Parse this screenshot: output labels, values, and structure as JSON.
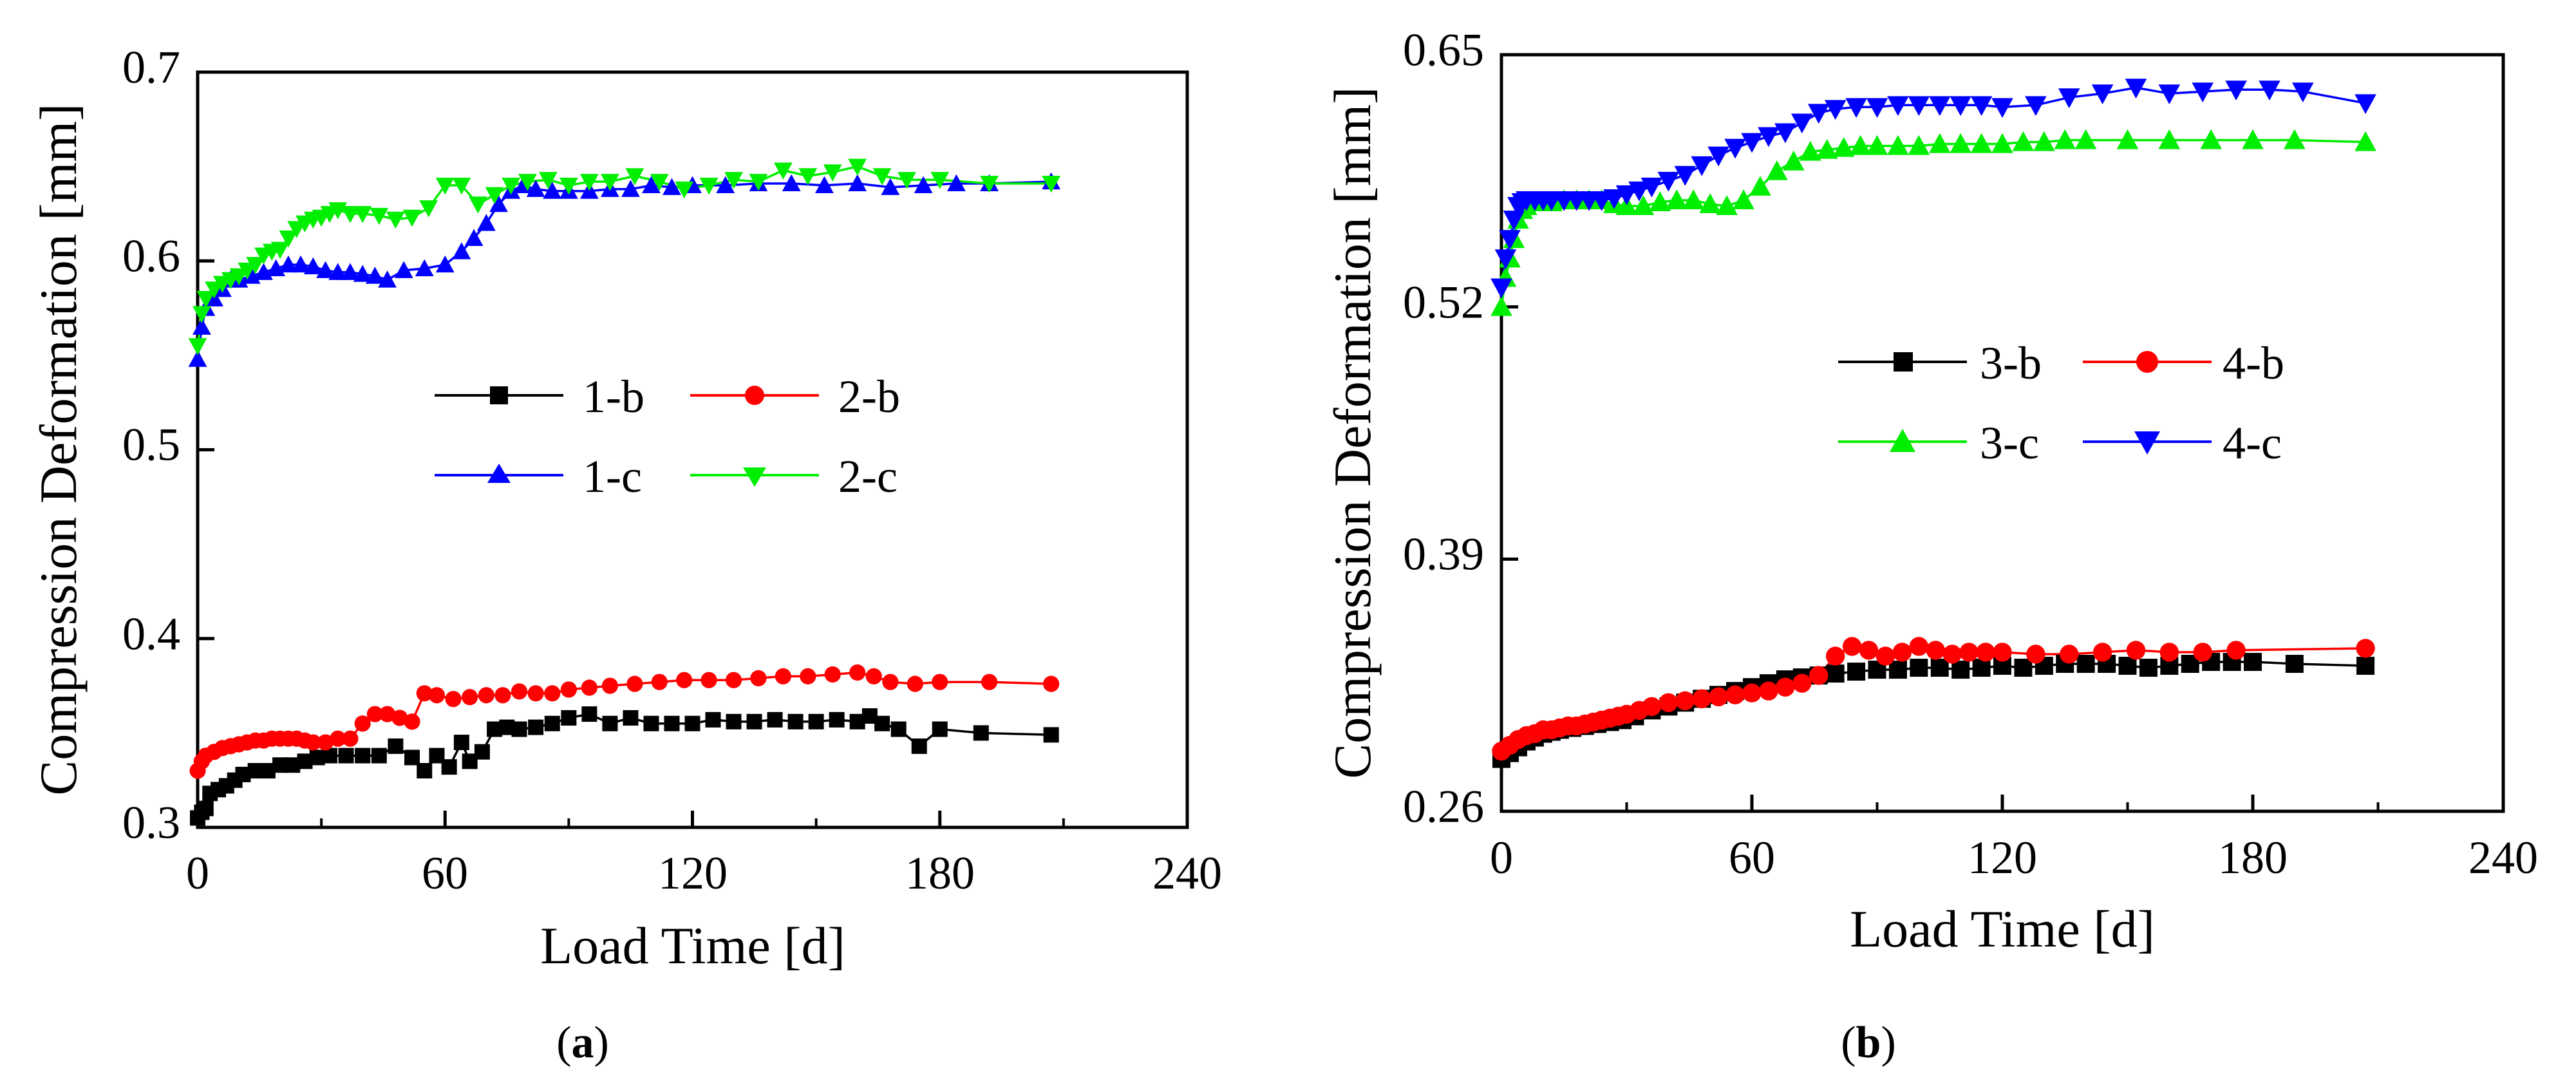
{
  "chart_data": [
    {
      "type": "line",
      "panel_label": "a",
      "xlabel": "Load Time [d]",
      "ylabel": "Compression Deformation [mm]",
      "xlim": [
        0,
        240
      ],
      "ylim": [
        0.3,
        0.7
      ],
      "xticks": [
        "0",
        "60",
        "120",
        "180",
        "240"
      ],
      "yticks": [
        "0.3",
        "0.4",
        "0.5",
        "0.6",
        "0.7"
      ],
      "xtick_values": [
        0,
        60,
        120,
        180,
        240
      ],
      "ytick_values": [
        0.3,
        0.4,
        0.5,
        0.6,
        0.7
      ],
      "legend_position": "center",
      "series": [
        {
          "name": "1-b",
          "color": "#000000",
          "marker": "square",
          "x": [
            0,
            1,
            2,
            3,
            5,
            7,
            9,
            11,
            14,
            17,
            20,
            23,
            26,
            29,
            32,
            36,
            40,
            44,
            48,
            52,
            55,
            58,
            61,
            64,
            66,
            69,
            72,
            75,
            78,
            82,
            86,
            90,
            95,
            100,
            105,
            110,
            115,
            120,
            125,
            130,
            135,
            140,
            145,
            150,
            155,
            160,
            163,
            166,
            170,
            175,
            180,
            190,
            207
          ],
          "y": [
            0.305,
            0.308,
            0.31,
            0.318,
            0.32,
            0.322,
            0.325,
            0.328,
            0.33,
            0.33,
            0.333,
            0.333,
            0.335,
            0.337,
            0.338,
            0.338,
            0.338,
            0.338,
            0.343,
            0.337,
            0.33,
            0.338,
            0.332,
            0.345,
            0.335,
            0.34,
            0.352,
            0.353,
            0.352,
            0.353,
            0.355,
            0.358,
            0.36,
            0.355,
            0.358,
            0.355,
            0.355,
            0.355,
            0.357,
            0.356,
            0.356,
            0.357,
            0.356,
            0.356,
            0.357,
            0.356,
            0.359,
            0.355,
            0.352,
            0.343,
            0.352,
            0.35,
            0.349
          ]
        },
        {
          "name": "2-b",
          "color": "#ff0000",
          "marker": "circle",
          "x": [
            0,
            1,
            2,
            4,
            6,
            8,
            10,
            12,
            14,
            16,
            18,
            20,
            22,
            24,
            26,
            28,
            31,
            34,
            37,
            40,
            43,
            46,
            49,
            52,
            55,
            58,
            62,
            66,
            70,
            74,
            78,
            82,
            86,
            90,
            95,
            100,
            106,
            112,
            118,
            124,
            130,
            136,
            142,
            148,
            154,
            160,
            164,
            168,
            174,
            180,
            192,
            207
          ],
          "y": [
            0.33,
            0.335,
            0.338,
            0.34,
            0.342,
            0.343,
            0.344,
            0.345,
            0.346,
            0.346,
            0.347,
            0.347,
            0.347,
            0.347,
            0.346,
            0.345,
            0.345,
            0.347,
            0.347,
            0.355,
            0.36,
            0.36,
            0.358,
            0.356,
            0.371,
            0.37,
            0.368,
            0.369,
            0.37,
            0.37,
            0.372,
            0.371,
            0.371,
            0.373,
            0.374,
            0.375,
            0.376,
            0.377,
            0.378,
            0.378,
            0.378,
            0.379,
            0.38,
            0.38,
            0.381,
            0.382,
            0.38,
            0.377,
            0.376,
            0.377,
            0.377,
            0.376
          ]
        },
        {
          "name": "1-c",
          "color": "#0000ff",
          "marker": "triangle-up",
          "x": [
            0,
            1,
            2,
            4,
            6,
            8,
            10,
            13,
            16,
            19,
            22,
            25,
            28,
            31,
            34,
            37,
            40,
            43,
            46,
            50,
            55,
            60,
            64,
            67,
            70,
            73,
            76,
            79,
            82,
            86,
            90,
            95,
            100,
            105,
            110,
            115,
            120,
            128,
            136,
            144,
            152,
            160,
            168,
            176,
            184,
            192,
            207
          ],
          "y": [
            0.548,
            0.565,
            0.575,
            0.58,
            0.585,
            0.59,
            0.59,
            0.592,
            0.594,
            0.596,
            0.598,
            0.598,
            0.597,
            0.595,
            0.594,
            0.594,
            0.593,
            0.592,
            0.59,
            0.595,
            0.596,
            0.598,
            0.605,
            0.612,
            0.62,
            0.63,
            0.637,
            0.64,
            0.638,
            0.637,
            0.637,
            0.637,
            0.638,
            0.638,
            0.64,
            0.639,
            0.64,
            0.64,
            0.641,
            0.641,
            0.64,
            0.641,
            0.639,
            0.64,
            0.641,
            0.641,
            0.642
          ]
        },
        {
          "name": "2-c",
          "color": "#00ee00",
          "marker": "triangle-down",
          "x": [
            0,
            1,
            2,
            4,
            6,
            8,
            10,
            12,
            14,
            16,
            18,
            20,
            22,
            24,
            26,
            28,
            30,
            32,
            34,
            37,
            40,
            44,
            48,
            52,
            56,
            60,
            64,
            68,
            72,
            76,
            80,
            85,
            90,
            95,
            100,
            106,
            112,
            118,
            124,
            130,
            136,
            142,
            148,
            154,
            160,
            166,
            172,
            180,
            192,
            207
          ],
          "y": [
            0.555,
            0.572,
            0.58,
            0.585,
            0.588,
            0.59,
            0.592,
            0.595,
            0.598,
            0.603,
            0.605,
            0.606,
            0.612,
            0.617,
            0.62,
            0.622,
            0.623,
            0.625,
            0.627,
            0.625,
            0.625,
            0.624,
            0.622,
            0.623,
            0.628,
            0.64,
            0.64,
            0.63,
            0.635,
            0.64,
            0.642,
            0.643,
            0.64,
            0.642,
            0.642,
            0.645,
            0.642,
            0.638,
            0.64,
            0.643,
            0.642,
            0.648,
            0.645,
            0.647,
            0.65,
            0.645,
            0.643,
            0.643,
            0.641,
            0.641
          ]
        }
      ]
    },
    {
      "type": "line",
      "panel_label": "b",
      "xlabel": "Load Time [d]",
      "ylabel": "Compression Deformation [mm]",
      "xlim": [
        0,
        240
      ],
      "ylim": [
        0.26,
        0.65
      ],
      "xticks": [
        "0",
        "60",
        "120",
        "180",
        "240"
      ],
      "yticks": [
        "0.26",
        "0.39",
        "0.52",
        "0.65"
      ],
      "xtick_values": [
        0,
        60,
        120,
        180,
        240
      ],
      "ytick_values": [
        0.26,
        0.39,
        0.52,
        0.65
      ],
      "legend_position": "center",
      "series": [
        {
          "name": "3-b",
          "color": "#000000",
          "marker": "square",
          "x": [
            0,
            2,
            4,
            6,
            8,
            10,
            12,
            14,
            17,
            20,
            23,
            26,
            29,
            32,
            36,
            40,
            44,
            48,
            52,
            56,
            60,
            64,
            68,
            72,
            76,
            80,
            85,
            90,
            95,
            100,
            105,
            110,
            115,
            120,
            125,
            130,
            135,
            140,
            145,
            150,
            155,
            160,
            165,
            170,
            175,
            180,
            190,
            207
          ],
          "y": [
            0.287,
            0.29,
            0.293,
            0.296,
            0.298,
            0.3,
            0.301,
            0.302,
            0.303,
            0.304,
            0.305,
            0.306,
            0.307,
            0.309,
            0.312,
            0.314,
            0.316,
            0.318,
            0.32,
            0.322,
            0.324,
            0.326,
            0.328,
            0.329,
            0.33,
            0.331,
            0.332,
            0.333,
            0.333,
            0.334,
            0.334,
            0.333,
            0.334,
            0.335,
            0.334,
            0.335,
            0.336,
            0.336,
            0.336,
            0.335,
            0.334,
            0.335,
            0.336,
            0.337,
            0.337,
            0.337,
            0.336,
            0.335
          ]
        },
        {
          "name": "4-b",
          "color": "#ff0000",
          "marker": "circle",
          "x": [
            0,
            2,
            4,
            6,
            8,
            10,
            12,
            14,
            16,
            18,
            20,
            22,
            24,
            26,
            28,
            30,
            33,
            36,
            40,
            44,
            48,
            52,
            56,
            60,
            64,
            68,
            72,
            76,
            80,
            84,
            88,
            92,
            96,
            100,
            104,
            108,
            112,
            116,
            120,
            128,
            136,
            144,
            152,
            160,
            168,
            176,
            207
          ],
          "y": [
            0.291,
            0.294,
            0.297,
            0.299,
            0.3,
            0.302,
            0.302,
            0.303,
            0.304,
            0.304,
            0.305,
            0.306,
            0.307,
            0.308,
            0.309,
            0.31,
            0.312,
            0.314,
            0.316,
            0.317,
            0.318,
            0.319,
            0.32,
            0.321,
            0.322,
            0.324,
            0.326,
            0.33,
            0.34,
            0.345,
            0.343,
            0.34,
            0.342,
            0.345,
            0.343,
            0.341,
            0.342,
            0.342,
            0.342,
            0.341,
            0.341,
            0.342,
            0.343,
            0.342,
            0.342,
            0.343,
            0.344
          ]
        },
        {
          "name": "3-c",
          "color": "#00ee00",
          "marker": "triangle-up",
          "x": [
            0,
            1,
            2,
            3,
            4,
            5,
            6,
            8,
            10,
            12,
            15,
            18,
            21,
            24,
            27,
            30,
            34,
            38,
            42,
            46,
            50,
            54,
            58,
            62,
            66,
            70,
            74,
            78,
            82,
            86,
            90,
            95,
            100,
            105,
            110,
            115,
            120,
            125,
            130,
            135,
            140,
            150,
            160,
            170,
            180,
            190,
            207
          ],
          "y": [
            0.52,
            0.535,
            0.545,
            0.555,
            0.565,
            0.57,
            0.572,
            0.574,
            0.574,
            0.574,
            0.575,
            0.575,
            0.575,
            0.575,
            0.573,
            0.572,
            0.572,
            0.574,
            0.575,
            0.575,
            0.573,
            0.572,
            0.575,
            0.582,
            0.59,
            0.595,
            0.6,
            0.601,
            0.602,
            0.603,
            0.603,
            0.603,
            0.603,
            0.604,
            0.604,
            0.604,
            0.604,
            0.605,
            0.605,
            0.606,
            0.606,
            0.606,
            0.606,
            0.606,
            0.606,
            0.606,
            0.605
          ]
        },
        {
          "name": "4-c",
          "color": "#0000ff",
          "marker": "triangle-down",
          "x": [
            0,
            1,
            2,
            3,
            4,
            5,
            6,
            8,
            10,
            12,
            15,
            18,
            21,
            24,
            27,
            30,
            33,
            36,
            40,
            44,
            48,
            52,
            56,
            60,
            64,
            68,
            72,
            76,
            80,
            85,
            90,
            95,
            100,
            105,
            110,
            115,
            120,
            128,
            136,
            144,
            152,
            160,
            168,
            176,
            184,
            192,
            207
          ],
          "y": [
            0.53,
            0.545,
            0.555,
            0.565,
            0.572,
            0.574,
            0.575,
            0.575,
            0.575,
            0.575,
            0.575,
            0.575,
            0.575,
            0.575,
            0.576,
            0.578,
            0.58,
            0.582,
            0.585,
            0.588,
            0.593,
            0.598,
            0.602,
            0.605,
            0.608,
            0.61,
            0.615,
            0.62,
            0.622,
            0.623,
            0.623,
            0.624,
            0.624,
            0.624,
            0.624,
            0.624,
            0.623,
            0.624,
            0.628,
            0.63,
            0.633,
            0.63,
            0.631,
            0.632,
            0.632,
            0.631,
            0.625
          ]
        }
      ]
    }
  ]
}
